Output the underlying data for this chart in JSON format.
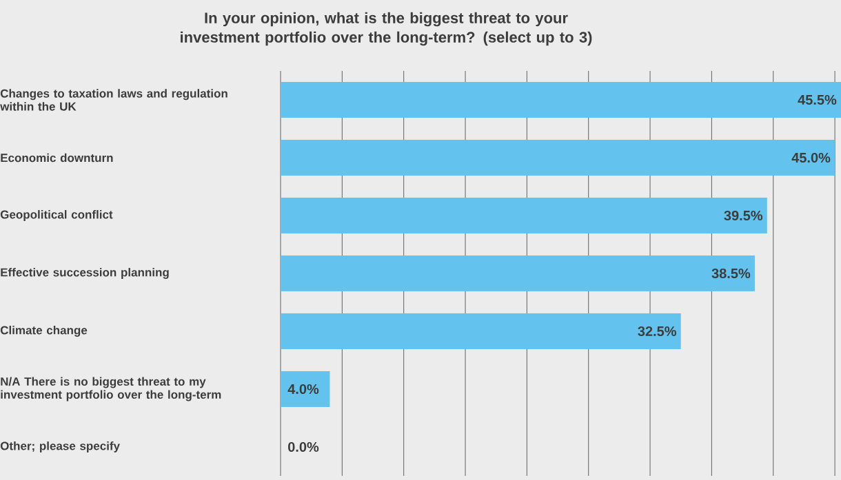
{
  "chart_data": {
    "type": "bar",
    "orientation": "horizontal",
    "title": "In your opinion, what is the biggest threat to your investment portfolio over the long-term? (select up to 3)",
    "categories": [
      "Changes to taxation laws and regulation within the UK",
      "Economic downturn",
      "Geopolitical conflict",
      "Effective succession planning",
      "Climate change",
      "N/A There is no biggest threat to my investment portfolio over the long-term",
      "Other; please specify"
    ],
    "values": [
      45.5,
      45.0,
      39.5,
      38.5,
      32.5,
      4.0,
      0.0
    ],
    "value_labels": [
      "45.5%",
      "45.0%",
      "39.5%",
      "38.5%",
      "32.5%",
      "4.0%",
      "0.0%"
    ],
    "color": "#63c3ee",
    "xlim": [
      0,
      45.5
    ],
    "xticks": [
      {
        "value": 0,
        "label": null
      },
      {
        "value": 5,
        "label": null
      },
      {
        "value": 10,
        "label": null
      },
      {
        "value": 15,
        "label": null
      },
      {
        "value": 20,
        "label": null
      },
      {
        "value": 25,
        "label": null
      },
      {
        "value": 30,
        "label": null
      },
      {
        "value": 35,
        "label": null
      },
      {
        "value": 40,
        "label": null
      },
      {
        "value": 45,
        "label": null
      }
    ],
    "grid": "x",
    "tick_labels": "y"
  }
}
